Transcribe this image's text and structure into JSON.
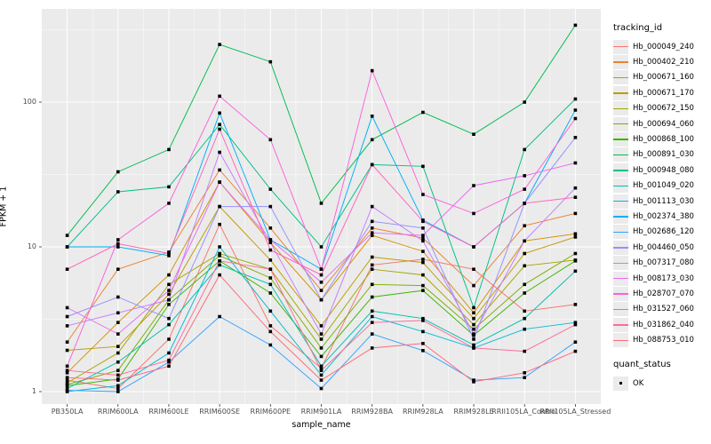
{
  "figure": {
    "panel_bg": "#EBEBEB",
    "grid_color": "#FFFFFF",
    "axis_text_color": "#4D4D4D",
    "tick_color": "#333333",
    "marker_color": "#000000"
  },
  "chart_data": {
    "type": "line",
    "xlabel": "sample_name",
    "ylabel": "FPKM + 1",
    "y_scale": "log10",
    "ylim": [
      0.82,
      440
    ],
    "y_ticks": [
      1,
      10,
      100
    ],
    "y_tick_labels": [
      "1",
      "10",
      "100"
    ],
    "grid": true,
    "legend": {
      "title": "tracking_id",
      "position": "right"
    },
    "legend2": {
      "title": "quant_status",
      "items": [
        {
          "label": "OK",
          "marker": "black-square"
        }
      ]
    },
    "categories": [
      "PB350LA",
      "RRIM600LA",
      "RRIM600LE",
      "RRIM600SE",
      "RRIM600PE",
      "RRIM901LA",
      "RRIM928BA",
      "RRIM928LA",
      "RRIM928LE",
      "RRII105LA_Control",
      "RRII105LA_Stressed"
    ],
    "series": [
      {
        "name": "Hb_000049_240",
        "color": "#F8766D",
        "values": [
          1.2,
          1.05,
          2.3,
          14.3,
          2.85,
          1.45,
          7.5,
          8.2,
          7.0,
          3.6,
          4.0
        ]
      },
      {
        "name": "Hb_000402_210",
        "color": "#EA8331",
        "values": [
          2.2,
          7.0,
          9.2,
          34.0,
          13.5,
          5.0,
          13.5,
          11.5,
          5.4,
          14.0,
          17.0
        ]
      },
      {
        "name": "Hb_000671_160",
        "color": "#D89000",
        "values": [
          1.35,
          3.0,
          6.4,
          28.0,
          10.7,
          4.3,
          12.0,
          9.3,
          3.5,
          11.0,
          12.3
        ]
      },
      {
        "name": "Hb_000671_170",
        "color": "#C09B00",
        "values": [
          1.93,
          2.05,
          4.7,
          19.0,
          8.1,
          2.85,
          8.5,
          7.8,
          3.2,
          9.0,
          11.7
        ]
      },
      {
        "name": "Hb_000672_150",
        "color": "#A3A500",
        "values": [
          1.15,
          1.85,
          5.5,
          9.0,
          7.0,
          2.3,
          7.0,
          6.4,
          2.9,
          7.4,
          8.1
        ]
      },
      {
        "name": "Hb_000694_060",
        "color": "#7CAE00",
        "values": [
          1.12,
          1.4,
          4.3,
          8.7,
          6.1,
          2.0,
          5.5,
          5.4,
          2.7,
          5.5,
          9.0
        ]
      },
      {
        "name": "Hb_000868_100",
        "color": "#39B600",
        "values": [
          1.1,
          1.22,
          4.0,
          8.0,
          4.8,
          1.75,
          4.5,
          5.0,
          2.45,
          4.8,
          8.0
        ]
      },
      {
        "name": "Hb_000891_030",
        "color": "#00BB4E",
        "values": [
          12.0,
          33.0,
          47.0,
          250,
          190,
          20.0,
          55.0,
          85.0,
          60.0,
          100,
          340
        ]
      },
      {
        "name": "Hb_000948_080",
        "color": "#00C087",
        "values": [
          10.0,
          24.0,
          26.0,
          70.0,
          25.0,
          10.0,
          37.0,
          36.0,
          3.8,
          47.0,
          105
        ]
      },
      {
        "name": "Hb_001049_020",
        "color": "#00C0AF",
        "values": [
          1.05,
          1.6,
          2.9,
          7.5,
          5.5,
          1.5,
          3.6,
          3.2,
          2.1,
          3.2,
          6.8
        ]
      },
      {
        "name": "Hb_001113_030",
        "color": "#00BCD8",
        "values": [
          1.0,
          1.1,
          1.85,
          10.0,
          3.6,
          1.3,
          3.3,
          2.6,
          2.0,
          2.7,
          3.0
        ]
      },
      {
        "name": "Hb_002374_380",
        "color": "#00B0F6",
        "values": [
          10.0,
          10.0,
          8.7,
          84.0,
          11.2,
          7.0,
          80.0,
          15.3,
          10.0,
          20.0,
          88.0
        ]
      },
      {
        "name": "Hb_002686_120",
        "color": "#35A2FF",
        "values": [
          1.02,
          1.0,
          1.6,
          3.3,
          2.1,
          1.05,
          2.5,
          1.92,
          1.2,
          1.25,
          2.2
        ]
      },
      {
        "name": "Hb_004460_050",
        "color": "#9590FF",
        "values": [
          3.3,
          4.5,
          3.2,
          19.0,
          19.0,
          4.3,
          15.0,
          13.5,
          2.3,
          20.0,
          57.0
        ]
      },
      {
        "name": "Hb_007317_080",
        "color": "#C77CFF",
        "values": [
          2.85,
          3.5,
          4.3,
          45.0,
          10.7,
          2.5,
          19.0,
          11.0,
          2.5,
          11.0,
          25.5
        ]
      },
      {
        "name": "Hb_008173_030",
        "color": "#E76BF3",
        "values": [
          3.8,
          2.5,
          5.0,
          28.0,
          11.2,
          5.7,
          12.5,
          12.0,
          26.5,
          31.0,
          38.0
        ]
      },
      {
        "name": "Hb_028707_070",
        "color": "#FA62DB",
        "values": [
          1.5,
          11.2,
          20.0,
          110,
          55.0,
          7.0,
          165,
          23.0,
          17.0,
          25.0,
          77.0
        ]
      },
      {
        "name": "Hb_031527_060",
        "color": "#FF62BC",
        "values": [
          7.0,
          10.5,
          9.0,
          65.0,
          9.5,
          6.4,
          37.0,
          15.0,
          10.0,
          20.0,
          22.0
        ]
      },
      {
        "name": "Hb_031862_040",
        "color": "#FF6A9A",
        "values": [
          1.4,
          1.3,
          1.65,
          8.0,
          7.0,
          1.4,
          3.0,
          3.1,
          2.0,
          1.9,
          2.9
        ]
      },
      {
        "name": "Hb_088753_010",
        "color": "#FF6879",
        "values": [
          1.25,
          1.2,
          1.5,
          6.4,
          2.6,
          1.2,
          2.0,
          2.15,
          1.17,
          1.35,
          1.9
        ]
      }
    ]
  }
}
